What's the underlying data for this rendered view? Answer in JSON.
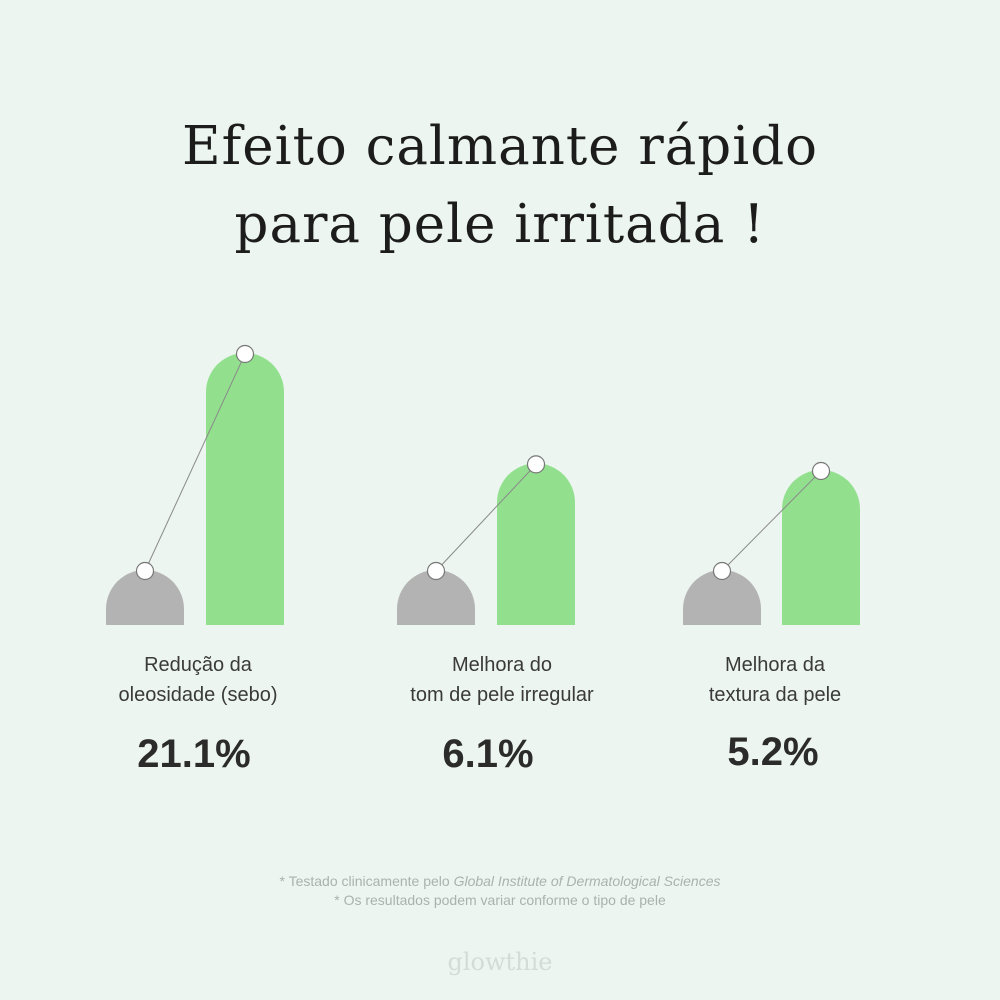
{
  "title": {
    "line1": "Efeito calmante rápido",
    "line2": "para pele irritada !"
  },
  "chart_data": {
    "type": "bar",
    "title": "Efeito calmante rápido para pele irritada !",
    "categories": [
      "Redução da oleosidade (sebo)",
      "Melhora do tom de pele irregular",
      "Melhora da textura da pele"
    ],
    "category_lines": [
      [
        "Redução da",
        "oleosidade (sebo)"
      ],
      [
        "Melhora do",
        "tom de pele irregular"
      ],
      [
        "Melhora da",
        "textura da pele"
      ]
    ],
    "values": [
      21.1,
      6.1,
      5.2
    ],
    "value_labels": [
      "21.1%",
      "6.1%",
      "5.2%"
    ],
    "unit": "%",
    "grid": false,
    "legend": "none"
  },
  "colors": {
    "before_bar": "#b3b3b3",
    "after_bar": "#92e08e",
    "connector": "#8a8a8a",
    "marker_fill": "#ffffff",
    "marker_stroke": "#777777"
  },
  "footnote": {
    "line1_prefix": "* Testado clinicamente pelo ",
    "line1_institute": "Global Institute of Dermatological Sciences",
    "line2": "* Os resultados podem variar conforme o tipo de pele"
  },
  "brand": "glowthie"
}
